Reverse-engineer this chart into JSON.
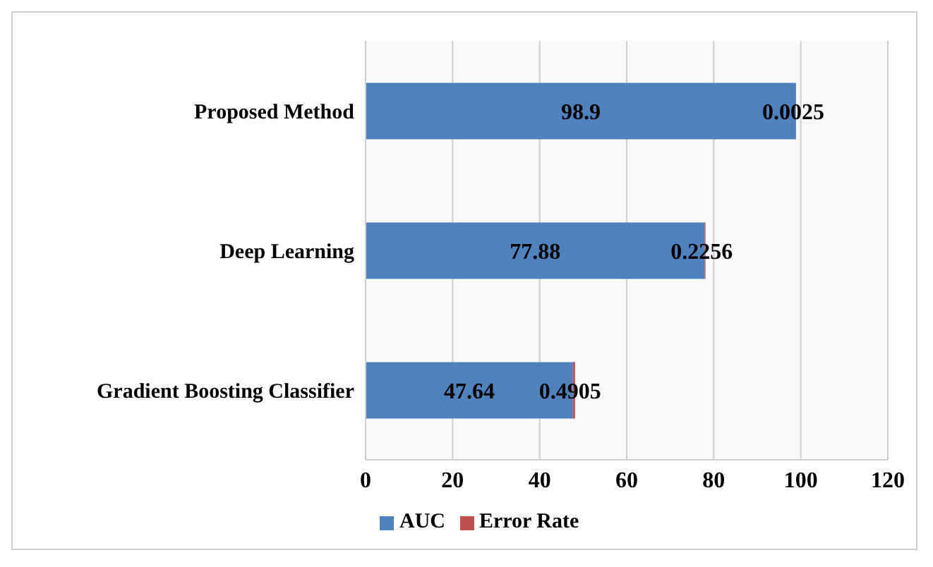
{
  "chart_data": {
    "type": "bar",
    "orientation": "horizontal",
    "stacked": true,
    "categories": [
      "Proposed Method",
      "Deep Learning",
      "Gradient Boosting Classifier"
    ],
    "series": [
      {
        "name": "AUC",
        "color": "#4f81bd",
        "values": [
          98.9,
          77.88,
          47.64
        ]
      },
      {
        "name": "Error Rate",
        "color": "#c0504d",
        "values": [
          0.0025,
          0.2256,
          0.4905
        ]
      }
    ],
    "xlim": [
      0,
      120
    ],
    "xticks": [
      0,
      20,
      40,
      60,
      80,
      100,
      120
    ],
    "grid": "x",
    "legend": "bottom",
    "data_labels": true
  }
}
